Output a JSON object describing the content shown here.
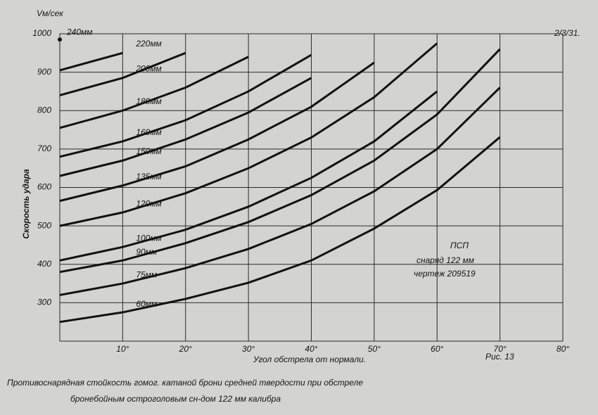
{
  "chart_data": {
    "type": "line",
    "y_unit_label": "Vм/сек",
    "y_axis_label": "Скорость удара",
    "x_axis_label": "Угол обстрела от нормали.",
    "corner_note": "2/3/31.",
    "annotations": [
      "ПСП",
      "снаряд 122 мм",
      "чертеж 209519"
    ],
    "figure_label": "Рис. 13",
    "caption": [
      "Противоснарядная стойкость гомог. катаной брони средней твердости при обстреле",
      "бронебойным остроголовым сн-дом 122 мм калибра"
    ],
    "x": [
      0,
      10,
      20,
      30,
      40,
      50,
      60,
      70,
      80
    ],
    "xlim": [
      0,
      80
    ],
    "xticks": [
      {
        "value": 10,
        "label": "10°"
      },
      {
        "value": 20,
        "label": "20°"
      },
      {
        "value": 30,
        "label": "30°"
      },
      {
        "value": 40,
        "label": "40°"
      },
      {
        "value": 50,
        "label": "50°"
      },
      {
        "value": 60,
        "label": "60°"
      },
      {
        "value": 70,
        "label": "70°"
      },
      {
        "value": 80,
        "label": "80°"
      }
    ],
    "ylim": [
      200,
      1000
    ],
    "yticks": [
      300,
      400,
      500,
      600,
      700,
      800,
      900,
      1000
    ],
    "grid": true,
    "color": "#111111",
    "series": [
      {
        "name": "240мм",
        "values": [
          985,
          null,
          null,
          null,
          null,
          null,
          null,
          null,
          null
        ]
      },
      {
        "name": "220мм",
        "values": [
          905,
          950,
          null,
          null,
          null,
          null,
          null,
          null,
          null
        ]
      },
      {
        "name": "200мм",
        "values": [
          840,
          885,
          950,
          null,
          null,
          null,
          null,
          null,
          null
        ]
      },
      {
        "name": "180мм",
        "values": [
          755,
          800,
          860,
          940,
          null,
          null,
          null,
          null,
          null
        ]
      },
      {
        "name": "160мм",
        "values": [
          680,
          720,
          775,
          850,
          945,
          null,
          null,
          null,
          null
        ]
      },
      {
        "name": "150мм",
        "values": [
          630,
          670,
          725,
          795,
          885,
          null,
          null,
          null,
          null
        ]
      },
      {
        "name": "135мм",
        "values": [
          565,
          605,
          655,
          725,
          810,
          925,
          null,
          null,
          null
        ]
      },
      {
        "name": "120мм",
        "values": [
          500,
          535,
          585,
          650,
          730,
          835,
          975,
          null,
          null
        ]
      },
      {
        "name": "100мм",
        "values": [
          410,
          445,
          490,
          550,
          625,
          720,
          850,
          null,
          null
        ]
      },
      {
        "name": "90мм",
        "values": [
          380,
          410,
          455,
          510,
          580,
          670,
          790,
          960,
          null
        ]
      },
      {
        "name": "75мм",
        "values": [
          320,
          350,
          390,
          440,
          505,
          590,
          700,
          860,
          null
        ]
      },
      {
        "name": "60мм",
        "values": [
          250,
          275,
          310,
          352,
          410,
          493,
          593,
          731,
          null
        ]
      }
    ]
  }
}
